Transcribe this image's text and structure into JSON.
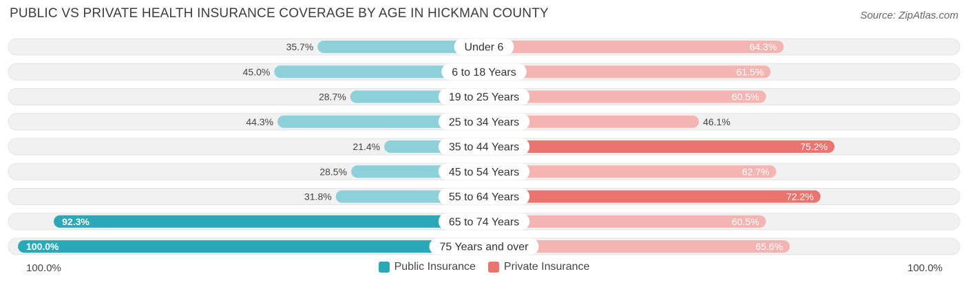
{
  "header": {
    "title": "PUBLIC VS PRIVATE HEALTH INSURANCE COVERAGE BY AGE IN HICKMAN COUNTY",
    "source": "Source: ZipAtlas.com"
  },
  "axis": {
    "left_label": "100.0%",
    "right_label": "100.0%"
  },
  "legend": {
    "public_label": "Public Insurance",
    "private_label": "Private Insurance",
    "public_color": "#2aa8b8",
    "private_color": "#ea7470"
  },
  "chart_data": {
    "type": "bar",
    "orientation": "horizontal-diverging",
    "categories": [
      "Under 6",
      "6 to 18 Years",
      "19 to 25 Years",
      "25 to 34 Years",
      "35 to 44 Years",
      "45 to 54 Years",
      "55 to 64 Years",
      "65 to 74 Years",
      "75 Years and over"
    ],
    "series": [
      {
        "name": "Public Insurance",
        "values": [
          35.7,
          45.0,
          28.7,
          44.3,
          21.4,
          28.5,
          31.8,
          92.3,
          100.0
        ],
        "labels": [
          "35.7%",
          "45.0%",
          "28.7%",
          "44.3%",
          "21.4%",
          "28.5%",
          "31.8%",
          "92.3%",
          "100.0%"
        ]
      },
      {
        "name": "Private Insurance",
        "values": [
          64.3,
          61.5,
          60.5,
          46.1,
          75.2,
          62.7,
          72.2,
          60.5,
          65.6
        ],
        "labels": [
          "64.3%",
          "61.5%",
          "60.5%",
          "46.1%",
          "75.2%",
          "62.7%",
          "72.2%",
          "60.5%",
          "65.6%"
        ]
      }
    ],
    "xlim": [
      0,
      100
    ],
    "legend_position": "bottom-center",
    "colors": {
      "public_light": "#8ed0d9",
      "public_dark": "#2aa8b8",
      "private_light": "#f4b5b2",
      "private_dark": "#ea7470",
      "track": "#f1f1f1"
    }
  }
}
